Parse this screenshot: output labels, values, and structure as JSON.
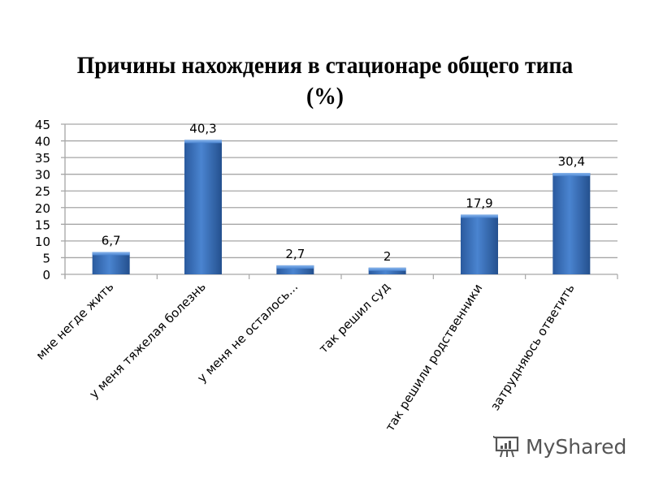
{
  "title_line1": "Причины нахождения в стационаре общего типа",
  "title_line2": "(%)",
  "watermark": {
    "text": "MyShared",
    "icon": "presentation-board-icon"
  },
  "colors": {
    "bar": "#3a70c0",
    "bar_dark": "#25508f",
    "bar_light": "#6fa0e0",
    "grid": "#a6a6a6"
  },
  "chart_data": {
    "type": "bar",
    "title": "Причины нахождения в стационаре общего типа (%)",
    "xlabel": "",
    "ylabel": "",
    "ylim": [
      0,
      45
    ],
    "yticks": [
      0,
      5,
      10,
      15,
      20,
      25,
      30,
      35,
      40,
      45
    ],
    "grid": true,
    "legend": null,
    "categories": [
      "мне негде жить",
      "у меня тяжелая болезнь",
      "у меня не осталось...",
      "так решил суд",
      "так решили родственники",
      "затрудняюсь ответить"
    ],
    "values": [
      6.7,
      40.3,
      2.7,
      2,
      17.9,
      30.4
    ],
    "data_labels": [
      "6,7",
      "40,3",
      "2,7",
      "2",
      "17,9",
      "30,4"
    ]
  }
}
